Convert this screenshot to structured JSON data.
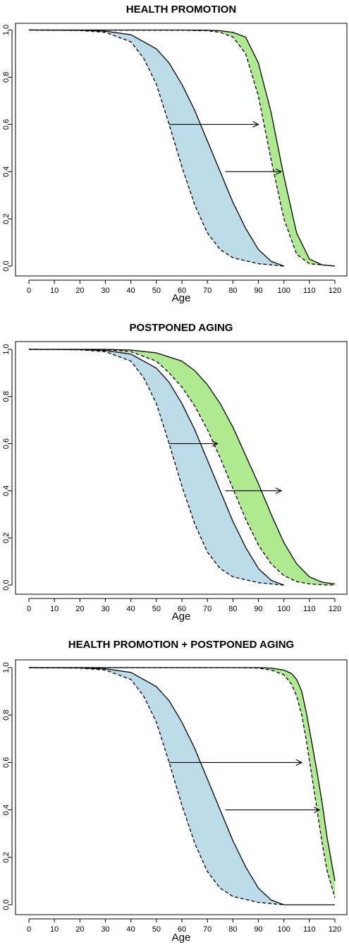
{
  "chart_data": [
    {
      "type": "line",
      "title": "HEALTH PROMOTION",
      "xlabel": "Age",
      "ylabel": "",
      "xlim": [
        0,
        120
      ],
      "ylim": [
        0,
        1
      ],
      "xticks": [
        "0",
        "10",
        "20",
        "30",
        "40",
        "50",
        "60",
        "70",
        "80",
        "90",
        "100",
        "110",
        "120"
      ],
      "yticks": [
        "0.0",
        "0.2",
        "0.4",
        "0.6",
        "0.8",
        "1.0"
      ],
      "colors": {
        "blue": "#bcdcea",
        "green": "#b0ea90",
        "line": "#000000"
      },
      "series": [
        {
          "style": "dashed",
          "x": [
            0,
            20,
            30,
            40,
            45,
            50,
            55,
            60,
            65,
            70,
            75,
            80,
            90,
            100
          ],
          "values": [
            1.0,
            0.998,
            0.99,
            0.95,
            0.88,
            0.77,
            0.6,
            0.42,
            0.26,
            0.14,
            0.07,
            0.035,
            0.01,
            0.0
          ]
        },
        {
          "style": "solid",
          "x": [
            0,
            20,
            30,
            40,
            50,
            55,
            60,
            65,
            70,
            75,
            80,
            85,
            90,
            95,
            100
          ],
          "values": [
            1.0,
            0.999,
            0.995,
            0.98,
            0.92,
            0.86,
            0.77,
            0.66,
            0.53,
            0.4,
            0.27,
            0.16,
            0.07,
            0.02,
            0.0
          ]
        },
        {
          "style": "dashed",
          "x": [
            0,
            60,
            70,
            75,
            80,
            85,
            90,
            95,
            100,
            105,
            110,
            120
          ],
          "values": [
            1.0,
            0.999,
            0.997,
            0.99,
            0.97,
            0.9,
            0.72,
            0.45,
            0.2,
            0.05,
            0.01,
            0.0
          ]
        },
        {
          "style": "solid",
          "x": [
            0,
            60,
            70,
            75,
            80,
            85,
            90,
            95,
            100,
            105,
            110,
            115,
            120
          ],
          "values": [
            1.0,
            1.0,
            0.999,
            0.997,
            0.99,
            0.97,
            0.86,
            0.65,
            0.38,
            0.14,
            0.03,
            0.005,
            0.0
          ]
        }
      ],
      "bands": [
        {
          "color": "blue",
          "lower": 0,
          "upper": 1
        },
        {
          "color": "green",
          "lower": 2,
          "upper": 3
        }
      ],
      "annotations": [
        {
          "type": "arrow",
          "x1": 55,
          "x2": 90,
          "y": 0.6
        },
        {
          "type": "arrow",
          "x1": 77,
          "x2": 99,
          "y": 0.4
        }
      ]
    },
    {
      "type": "line",
      "title": "POSTPONED AGING",
      "xlabel": "Age",
      "ylabel": "",
      "xlim": [
        0,
        120
      ],
      "ylim": [
        0,
        1
      ],
      "xticks": [
        "0",
        "10",
        "20",
        "30",
        "40",
        "50",
        "60",
        "70",
        "80",
        "90",
        "100",
        "110",
        "120"
      ],
      "yticks": [
        "0.0",
        "0.2",
        "0.4",
        "0.6",
        "0.8",
        "1.0"
      ],
      "colors": {
        "blue": "#bcdcea",
        "green": "#b0ea90",
        "line": "#000000"
      },
      "series": [
        {
          "style": "dashed",
          "x": [
            0,
            20,
            30,
            40,
            45,
            50,
            55,
            60,
            65,
            70,
            75,
            80,
            90,
            100
          ],
          "values": [
            1.0,
            0.998,
            0.99,
            0.95,
            0.88,
            0.77,
            0.6,
            0.42,
            0.26,
            0.14,
            0.07,
            0.035,
            0.01,
            0.0
          ]
        },
        {
          "style": "solid",
          "x": [
            0,
            20,
            30,
            40,
            50,
            55,
            60,
            65,
            70,
            75,
            80,
            85,
            90,
            95,
            100
          ],
          "values": [
            1.0,
            0.999,
            0.995,
            0.98,
            0.92,
            0.86,
            0.77,
            0.66,
            0.53,
            0.4,
            0.27,
            0.16,
            0.07,
            0.02,
            0.0
          ]
        },
        {
          "style": "dashed",
          "x": [
            0,
            30,
            40,
            50,
            55,
            60,
            65,
            70,
            75,
            80,
            85,
            90,
            95,
            100,
            105,
            110,
            115,
            120
          ],
          "values": [
            1.0,
            0.999,
            0.99,
            0.95,
            0.9,
            0.84,
            0.76,
            0.66,
            0.54,
            0.41,
            0.28,
            0.17,
            0.09,
            0.04,
            0.015,
            0.005,
            0.001,
            0.0
          ]
        },
        {
          "style": "solid",
          "x": [
            0,
            30,
            40,
            50,
            60,
            65,
            70,
            75,
            80,
            85,
            90,
            95,
            100,
            105,
            110,
            115,
            120
          ],
          "values": [
            1.0,
            1.0,
            0.997,
            0.985,
            0.95,
            0.91,
            0.85,
            0.77,
            0.67,
            0.55,
            0.43,
            0.3,
            0.18,
            0.09,
            0.035,
            0.012,
            0.005
          ]
        }
      ],
      "bands": [
        {
          "color": "blue",
          "lower": 0,
          "upper": 1
        },
        {
          "color": "green",
          "lower": 2,
          "upper": 3
        }
      ],
      "annotations": [
        {
          "type": "arrow",
          "x1": 55,
          "x2": 74,
          "y": 0.6
        },
        {
          "type": "arrow",
          "x1": 77,
          "x2": 99,
          "y": 0.4
        }
      ]
    },
    {
      "type": "line",
      "title": "HEALTH PROMOTION + POSTPONED AGING",
      "xlabel": "Age",
      "ylabel": "",
      "xlim": [
        0,
        120
      ],
      "ylim": [
        0,
        1
      ],
      "xticks": [
        "0",
        "10",
        "20",
        "30",
        "40",
        "50",
        "60",
        "70",
        "80",
        "90",
        "100",
        "110",
        "120"
      ],
      "yticks": [
        "0.0",
        "0.2",
        "0.4",
        "0.6",
        "0.8",
        "1.0"
      ],
      "colors": {
        "blue": "#bcdcea",
        "green": "#b0ea90",
        "line": "#000000"
      },
      "series": [
        {
          "style": "dashed",
          "x": [
            0,
            20,
            30,
            40,
            45,
            50,
            55,
            60,
            65,
            70,
            75,
            80,
            90,
            100
          ],
          "values": [
            1.0,
            0.998,
            0.99,
            0.95,
            0.88,
            0.77,
            0.6,
            0.42,
            0.26,
            0.14,
            0.07,
            0.035,
            0.01,
            0.0
          ]
        },
        {
          "style": "solid",
          "x": [
            0,
            20,
            30,
            40,
            50,
            55,
            60,
            65,
            70,
            75,
            80,
            85,
            90,
            95,
            100,
            110,
            120
          ],
          "values": [
            1.0,
            0.999,
            0.995,
            0.98,
            0.92,
            0.86,
            0.77,
            0.66,
            0.53,
            0.4,
            0.27,
            0.16,
            0.07,
            0.02,
            0.0,
            0.0,
            0.0
          ]
        },
        {
          "style": "dashed",
          "x": [
            0,
            80,
            90,
            95,
            100,
            103,
            105,
            107,
            109,
            111,
            113,
            115,
            117,
            120
          ],
          "values": [
            1.0,
            1.0,
            0.998,
            0.99,
            0.97,
            0.93,
            0.88,
            0.8,
            0.68,
            0.54,
            0.4,
            0.26,
            0.14,
            0.03
          ]
        },
        {
          "style": "solid",
          "x": [
            0,
            80,
            90,
            95,
            100,
            103,
            105,
            107,
            109,
            111,
            113,
            115,
            117,
            120
          ],
          "values": [
            1.0,
            1.0,
            1.0,
            0.998,
            0.99,
            0.975,
            0.95,
            0.9,
            0.8,
            0.68,
            0.56,
            0.43,
            0.28,
            0.1
          ]
        }
      ],
      "bands": [
        {
          "color": "blue",
          "lower": 0,
          "upper": 1
        },
        {
          "color": "green",
          "lower": 2,
          "upper": 3
        }
      ],
      "annotations": [
        {
          "type": "arrow",
          "x1": 55,
          "x2": 107,
          "y": 0.6
        },
        {
          "type": "arrow",
          "x1": 77,
          "x2": 114,
          "y": 0.4
        }
      ]
    }
  ]
}
